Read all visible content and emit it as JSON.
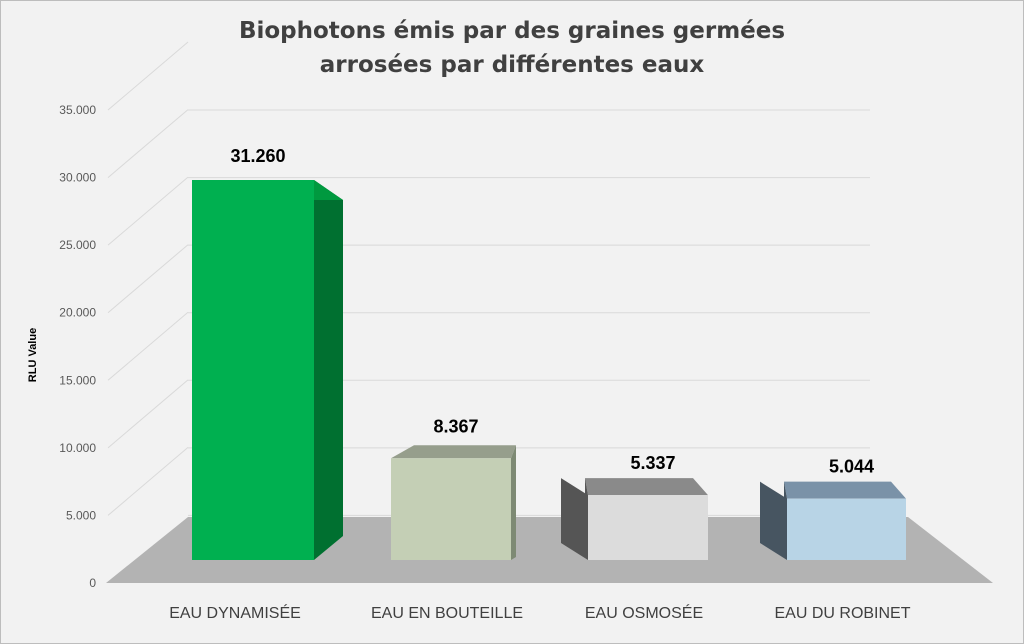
{
  "chart_data": {
    "type": "bar",
    "title_lines": [
      "Biophotons émis par des graines germées",
      "arrosées par différentes eaux"
    ],
    "ylabel": "RLU Value",
    "xlabel": "",
    "categories": [
      "EAU DYNAMISÉE",
      "EAU EN BOUTEILLE",
      "EAU OSMOSÉE",
      "EAU DU ROBINET"
    ],
    "values": [
      31260,
      8367,
      5337,
      5044
    ],
    "data_labels": [
      "31.260",
      "8.367",
      "5.337",
      "5.044"
    ],
    "ylim": [
      0,
      35000
    ],
    "yticks": [
      0,
      5000,
      10000,
      15000,
      20000,
      25000,
      30000,
      35000
    ],
    "ytick_labels": [
      "0",
      "5.000",
      "10.000",
      "15.000",
      "20.000",
      "25.000",
      "30.000",
      "35.000"
    ],
    "grid": true,
    "legend": "none",
    "colors": {
      "front": [
        "#00b050",
        "#c4cfb5",
        "#dcdcdc",
        "#b8d4e6"
      ],
      "side": [
        "#007030",
        "#7e8a74",
        "#555555",
        "#475561"
      ],
      "top": [
        "#00993f",
        "#969e8c",
        "#8a8a8a",
        "#7a92a8"
      ],
      "floor": "#b3b3b3",
      "grid": "#d9d9d9",
      "text": "#404040",
      "label": "#000000"
    }
  }
}
